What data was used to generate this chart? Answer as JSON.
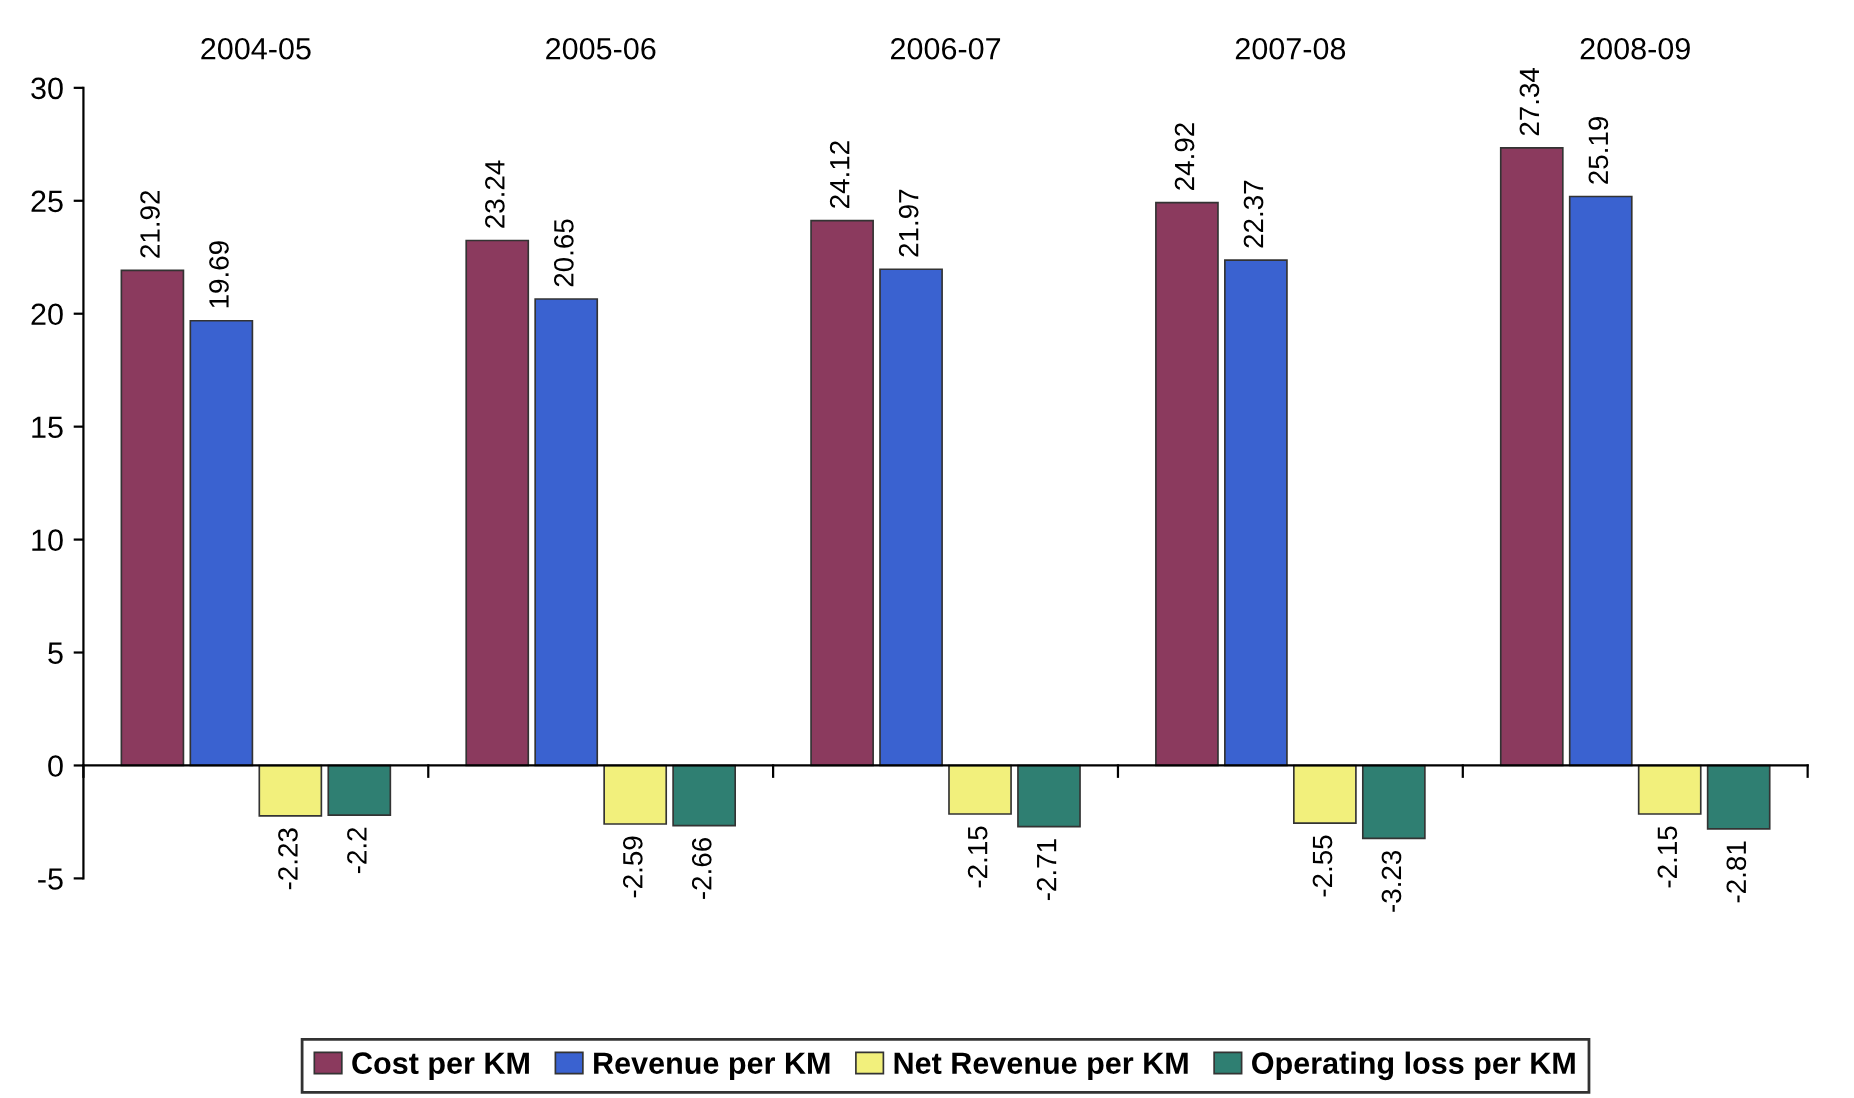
{
  "chart_data": {
    "type": "bar",
    "categories": [
      "2004-05",
      "2005-06",
      "2006-07",
      "2007-08",
      "2008-09"
    ],
    "series": [
      {
        "name": "Cost per KM",
        "color": "#8b3a5e",
        "values": [
          21.92,
          23.24,
          24.12,
          24.92,
          27.34
        ]
      },
      {
        "name": "Revenue per KM",
        "color": "#3a62d0",
        "values": [
          19.69,
          20.65,
          21.97,
          22.37,
          25.19
        ]
      },
      {
        "name": "Net Revenue per KM",
        "color": "#f2f07c",
        "values": [
          -2.23,
          -2.59,
          -2.15,
          -2.55,
          -2.15
        ]
      },
      {
        "name": "Operating loss per KM",
        "color": "#2f7f72",
        "values": [
          -2.2,
          -2.66,
          -2.71,
          -3.23,
          -2.81
        ]
      }
    ],
    "ylim": [
      -5,
      30
    ],
    "yticks": [
      -5,
      0,
      5,
      10,
      15,
      20,
      25,
      30
    ],
    "data_labels": true,
    "legend": "bottom"
  }
}
